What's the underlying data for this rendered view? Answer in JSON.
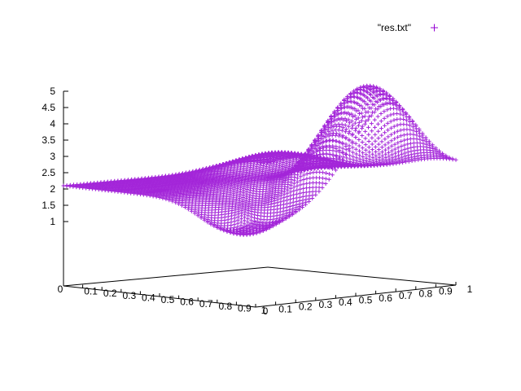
{
  "chart_data": {
    "type": "scatter",
    "series": [
      {
        "name": "\"res.txt\"",
        "marker": "+",
        "color": "#9400d3"
      }
    ],
    "x_ticks": [
      "0",
      "0.1",
      "0.2",
      "0.3",
      "0.4",
      "0.5",
      "0.6",
      "0.7",
      "0.8",
      "0.9",
      "1"
    ],
    "y_ticks": [
      "0",
      "0.1",
      "0.2",
      "0.3",
      "0.4",
      "0.5",
      "0.6",
      "0.7",
      "0.8",
      "0.9",
      "1"
    ],
    "z_ticks": [
      "1",
      "1.5",
      "2",
      "2.5",
      "3",
      "3.5",
      "4",
      "4.5",
      "5"
    ],
    "xlim": [
      0,
      1
    ],
    "ylim": [
      0,
      1
    ],
    "zlim": [
      1,
      5
    ],
    "grid": false,
    "legend_position": "top-right"
  }
}
